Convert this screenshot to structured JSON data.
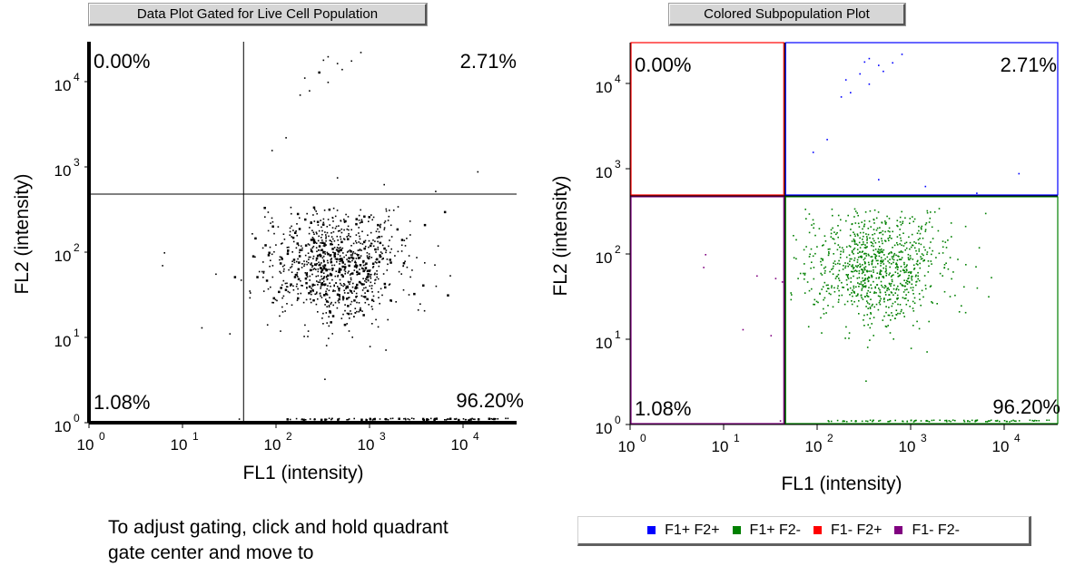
{
  "left_panel": {
    "title": "Data Plot Gated for Live Cell Population",
    "quadrant_percents": {
      "ul": "0.00%",
      "ur": "2.71%",
      "ll": "1.08%",
      "lr": "96.20%"
    }
  },
  "right_panel": {
    "title": "Colored  Subpopulation  Plot",
    "quadrant_percents": {
      "ul": "0.00%",
      "ur": "2.71%",
      "ll": "1.08%",
      "lr": "96.20%"
    }
  },
  "legend": [
    {
      "label": "F1+ F2+",
      "color": "#0000ff"
    },
    {
      "label": "F1+ F2-",
      "color": "#008000"
    },
    {
      "label": "F1- F2+",
      "color": "#ff0000"
    },
    {
      "label": "F1- F2-",
      "color": "#800080"
    }
  ],
  "instructions": "To adjust gating, click and hold quadrant gate center and move to",
  "colors": {
    "q_ur": "#0000ff",
    "q_lr": "#008000",
    "q_ul": "#ff0000",
    "q_ll": "#800080",
    "background": "#ffffff"
  },
  "chart_data": [
    {
      "type": "scatter",
      "title": "Data Plot Gated for Live Cell Population",
      "xlabel": "FL1 (intensity)",
      "ylabel": "FL2 (intensity)",
      "x_scale": "log",
      "y_scale": "log",
      "xlim": [
        1,
        33000
      ],
      "ylim": [
        1,
        26000
      ],
      "x_ticks": [
        1,
        10,
        100,
        1000,
        10000
      ],
      "y_ticks": [
        1,
        10,
        100,
        1000,
        10000
      ],
      "tick_labels": [
        "10",
        "10",
        "10",
        "10",
        "10"
      ],
      "tick_exponents": [
        "0",
        "1",
        "2",
        "3",
        "4"
      ],
      "quadrant_gate": {
        "x": 45,
        "y": 480
      },
      "grid": false,
      "point_color": "#000000"
    },
    {
      "type": "scatter",
      "title": "Colored  Subpopulation  Plot",
      "xlabel": "FL1 (intensity)",
      "ylabel": "FL2 (intensity)",
      "x_scale": "log",
      "y_scale": "log",
      "xlim": [
        1,
        33000
      ],
      "ylim": [
        1,
        26000
      ],
      "x_ticks": [
        1,
        10,
        100,
        1000,
        10000
      ],
      "y_ticks": [
        1,
        10,
        100,
        1000,
        10000
      ],
      "tick_labels": [
        "10",
        "10",
        "10",
        "10",
        "10"
      ],
      "tick_exponents": [
        "0",
        "1",
        "2",
        "3",
        "4"
      ],
      "quadrant_gate": {
        "x": 45,
        "y": 480
      },
      "grid": false,
      "point_colors": {
        "ur": "#0000ff",
        "lr": "#008000",
        "ul": "#ff0000",
        "ll": "#800080"
      }
    }
  ]
}
